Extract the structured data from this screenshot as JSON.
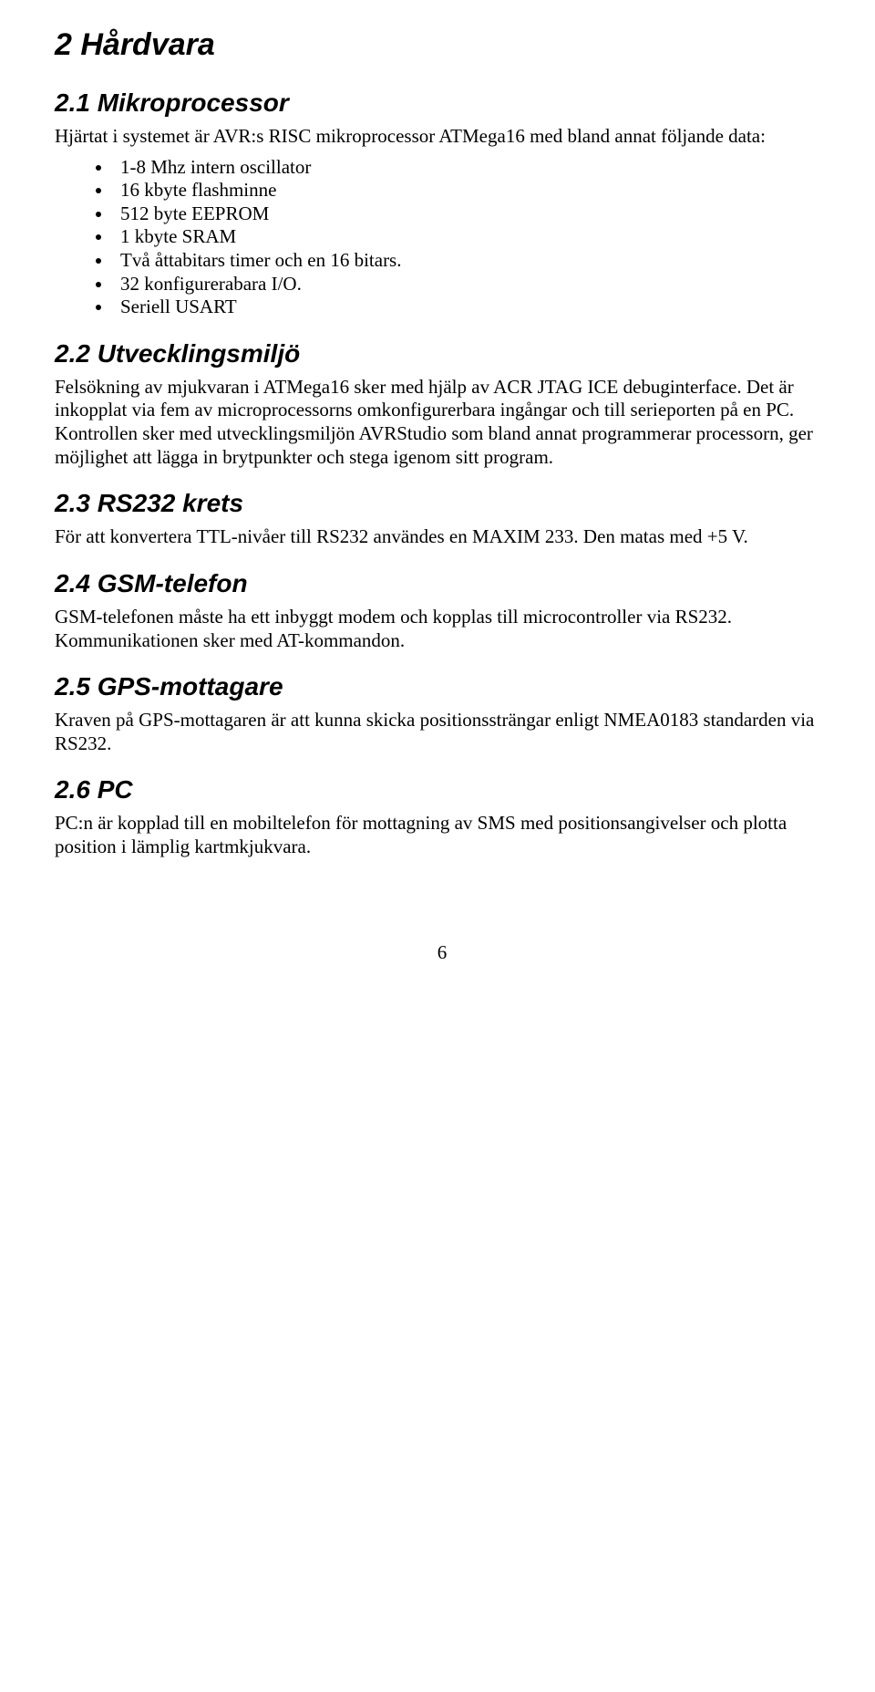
{
  "page": {
    "heading": "2 Hårdvara",
    "sections": {
      "s21": {
        "title": "2.1 Mikroprocessor",
        "intro": "Hjärtat i systemet är AVR:s RISC mikroprocessor ATMega16 med bland annat följande data:",
        "bullets": [
          "1-8 Mhz intern oscillator",
          "16 kbyte flashminne",
          "512 byte EEPROM",
          "1 kbyte SRAM",
          "Två åttabitars timer och en 16 bitars.",
          "32 konfigurerabara  I/O.",
          "Seriell USART"
        ]
      },
      "s22": {
        "title": "2.2 Utvecklingsmiljö",
        "body": "Felsökning av mjukvaran i ATMega16 sker med hjälp av ACR JTAG ICE debuginterface. Det är inkopplat via fem av microprocessorns omkonfigurerbara ingångar och till serieporten på en PC. Kontrollen sker med utvecklingsmiljön AVRStudio som bland annat programmerar processorn, ger möjlighet att lägga in brytpunkter och stega igenom sitt program."
      },
      "s23": {
        "title": "2.3 RS232 krets",
        "body": "För att konvertera TTL-nivåer till RS232 användes en MAXIM 233. Den matas med +5 V."
      },
      "s24": {
        "title": "2.4 GSM-telefon",
        "body": "GSM-telefonen måste ha ett inbyggt modem och kopplas till microcontroller via RS232. Kommunikationen sker med AT-kommandon."
      },
      "s25": {
        "title": "2.5 GPS-mottagare",
        "body": "Kraven på GPS-mottagaren är att kunna skicka positionssträngar enligt NMEA0183 standarden via RS232."
      },
      "s26": {
        "title": "2.6 PC",
        "body": "PC:n är kopplad till en mobiltelefon för mottagning av SMS med positionsangivelser och plotta position i lämplig kartmkjukvara."
      }
    },
    "page_number": "6"
  }
}
